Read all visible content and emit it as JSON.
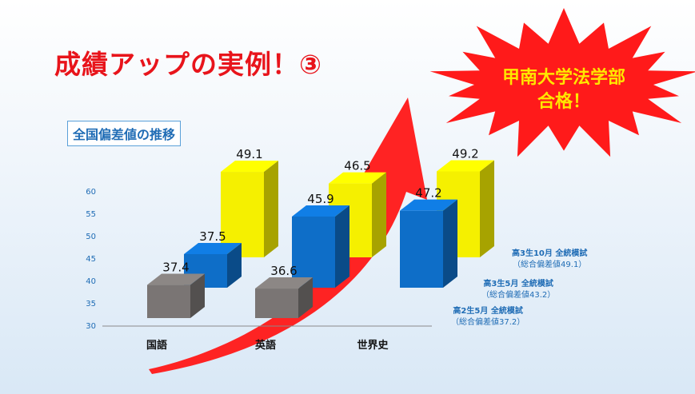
{
  "slide": {
    "title": "成績アップの実例！③",
    "burst_line1": "甲南大学法学部",
    "burst_line2": "合格！"
  },
  "colors": {
    "title_red": "#e8141b",
    "burst_red": "#ff1a1a",
    "burst_text": "#ffe600",
    "arrow_red": "#ff1a1a",
    "label_blue": "#1f6cb5"
  },
  "chart_data": {
    "type": "bar",
    "variant": "3d-clustered",
    "title": "全国偏差値の推移",
    "categories": [
      "国語",
      "英語",
      "世界史"
    ],
    "ylim": [
      30,
      60
    ],
    "yticks": [
      30,
      35,
      40,
      45,
      50,
      55,
      60
    ],
    "series": [
      {
        "name": "高2生5月 全統模試",
        "note": "（総合偏差値37.2）",
        "color": "#7a7574",
        "values": [
          37.4,
          36.6,
          null
        ]
      },
      {
        "name": "高3生5月 全統模試",
        "note": "（総合偏差値43.2）",
        "color": "#0e6ec8",
        "values": [
          37.5,
          45.9,
          47.2
        ]
      },
      {
        "name": "高3生10月 全統模試",
        "note": "（総合偏差値49.1）",
        "color": "#f5f000",
        "values": [
          49.1,
          46.5,
          49.2
        ]
      }
    ],
    "grid": false,
    "legend": "right"
  }
}
